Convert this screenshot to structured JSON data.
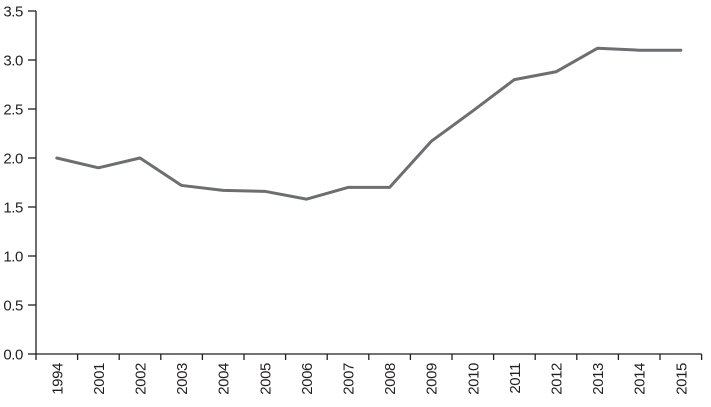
{
  "chart_data": {
    "type": "line",
    "title": "",
    "xlabel": "",
    "ylabel": "",
    "categories": [
      "1994",
      "2001",
      "2002",
      "2003",
      "2004",
      "2005",
      "2006",
      "2007",
      "2008",
      "2009",
      "2010",
      "2011",
      "2012",
      "2013",
      "2014",
      "2015"
    ],
    "values": [
      2.0,
      1.9,
      2.0,
      1.72,
      1.67,
      1.66,
      1.58,
      1.7,
      1.7,
      2.17,
      2.48,
      2.8,
      2.88,
      3.12,
      3.1,
      3.1
    ],
    "ylim": [
      0,
      3.5
    ],
    "ytick_step": 0.5,
    "ytick_labels": [
      "0.0",
      "0.5",
      "1.0",
      "1.5",
      "2.0",
      "2.5",
      "3.0",
      "3.5"
    ],
    "x_label_rotation": -90,
    "grid": false,
    "legend": "none",
    "colors": {
      "line": "#6d6e71",
      "axis": "#231f20",
      "text": "#231f20",
      "background": "#ffffff"
    },
    "line_width": 3
  }
}
